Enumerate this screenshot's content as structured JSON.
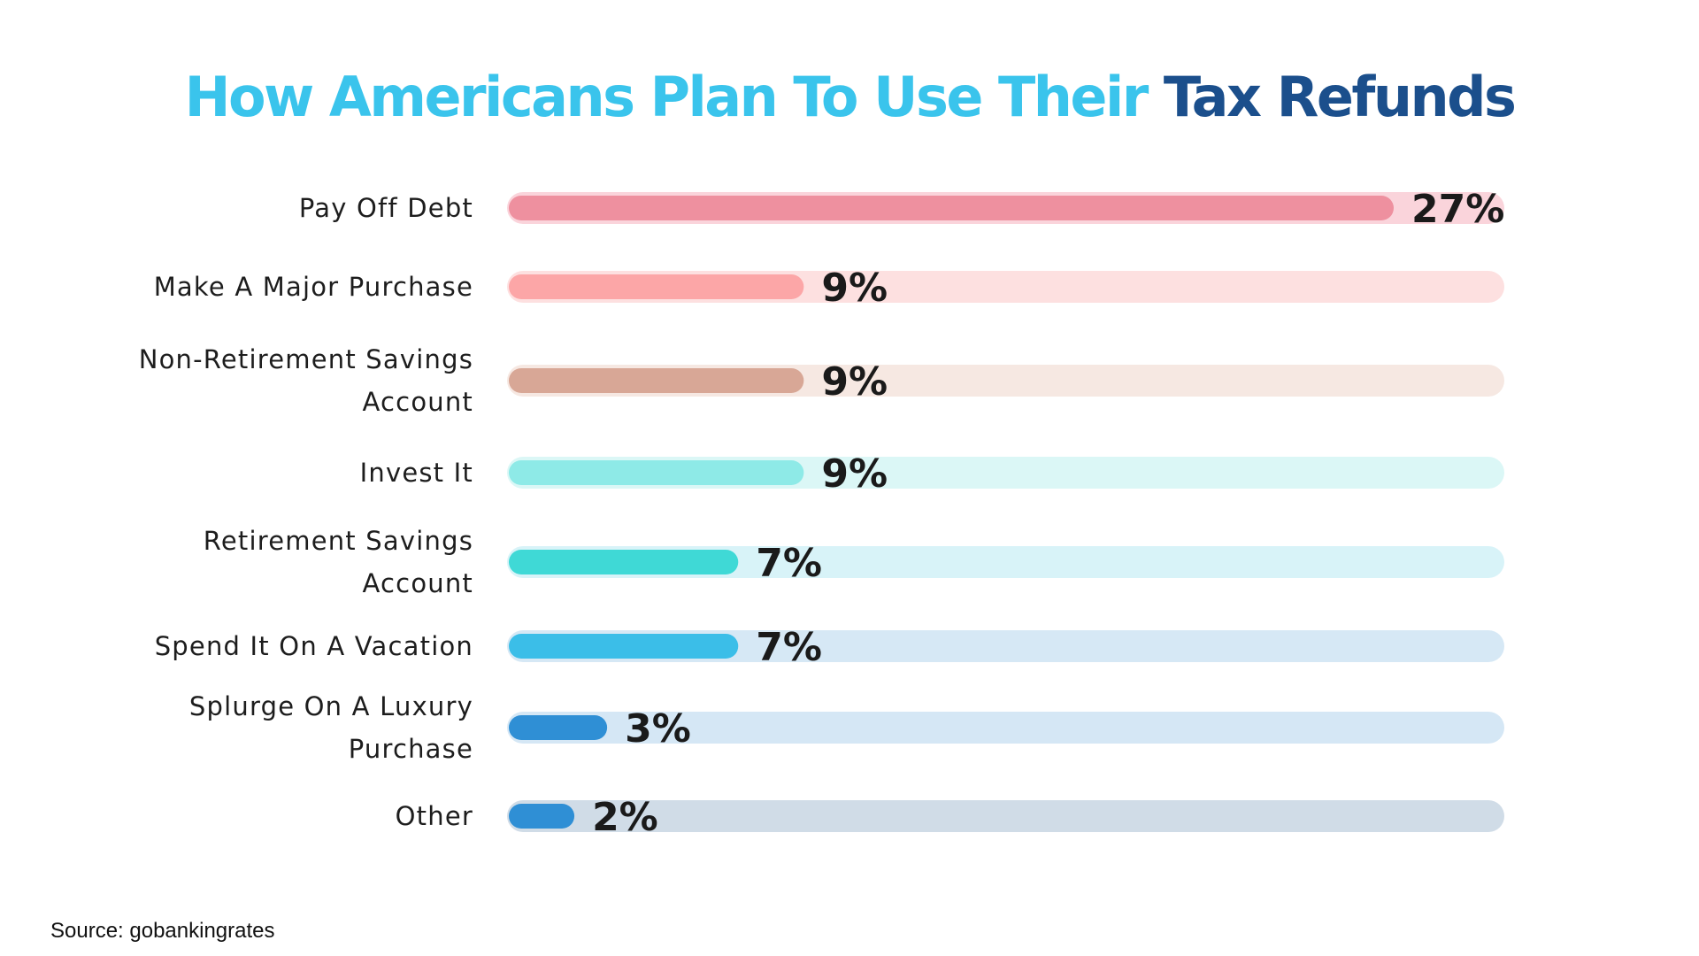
{
  "title": {
    "part1": "How Americans Plan To Use Their ",
    "part2": "Tax Refunds",
    "color1": "#3ac4ec",
    "color2": "#1b4f8c"
  },
  "source": "Source: gobankingrates",
  "chart_data": {
    "type": "bar",
    "orientation": "horizontal",
    "categories": [
      [
        "Pay Off Debt"
      ],
      [
        "Make A Major Purchase"
      ],
      [
        "Non-Retirement Savings",
        "Account"
      ],
      [
        "Invest It"
      ],
      [
        "Retirement Savings",
        "Account"
      ],
      [
        "Spend It On A Vacation"
      ],
      [
        "Splurge On A Luxury",
        "Purchase"
      ],
      [
        "Other"
      ]
    ],
    "values": [
      27,
      9,
      9,
      9,
      7,
      7,
      3,
      2
    ],
    "value_labels": [
      "27%",
      "9%",
      "9%",
      "9%",
      "7%",
      "7%",
      "3%",
      "2%"
    ],
    "unit": "%",
    "bar_colors": [
      "#ee909f",
      "#fca6a7",
      "#d8a796",
      "#8eeae7",
      "#3fd9d6",
      "#3bbee8",
      "#2f8fd5",
      "#2f8fd5"
    ],
    "track_colors": [
      "#fad4db",
      "#fde0e0",
      "#f6e8e2",
      "#dbf7f6",
      "#d8f3f8",
      "#d6e8f5",
      "#d5e7f5",
      "#d0dce7"
    ],
    "grid": false,
    "legend": "none"
  }
}
